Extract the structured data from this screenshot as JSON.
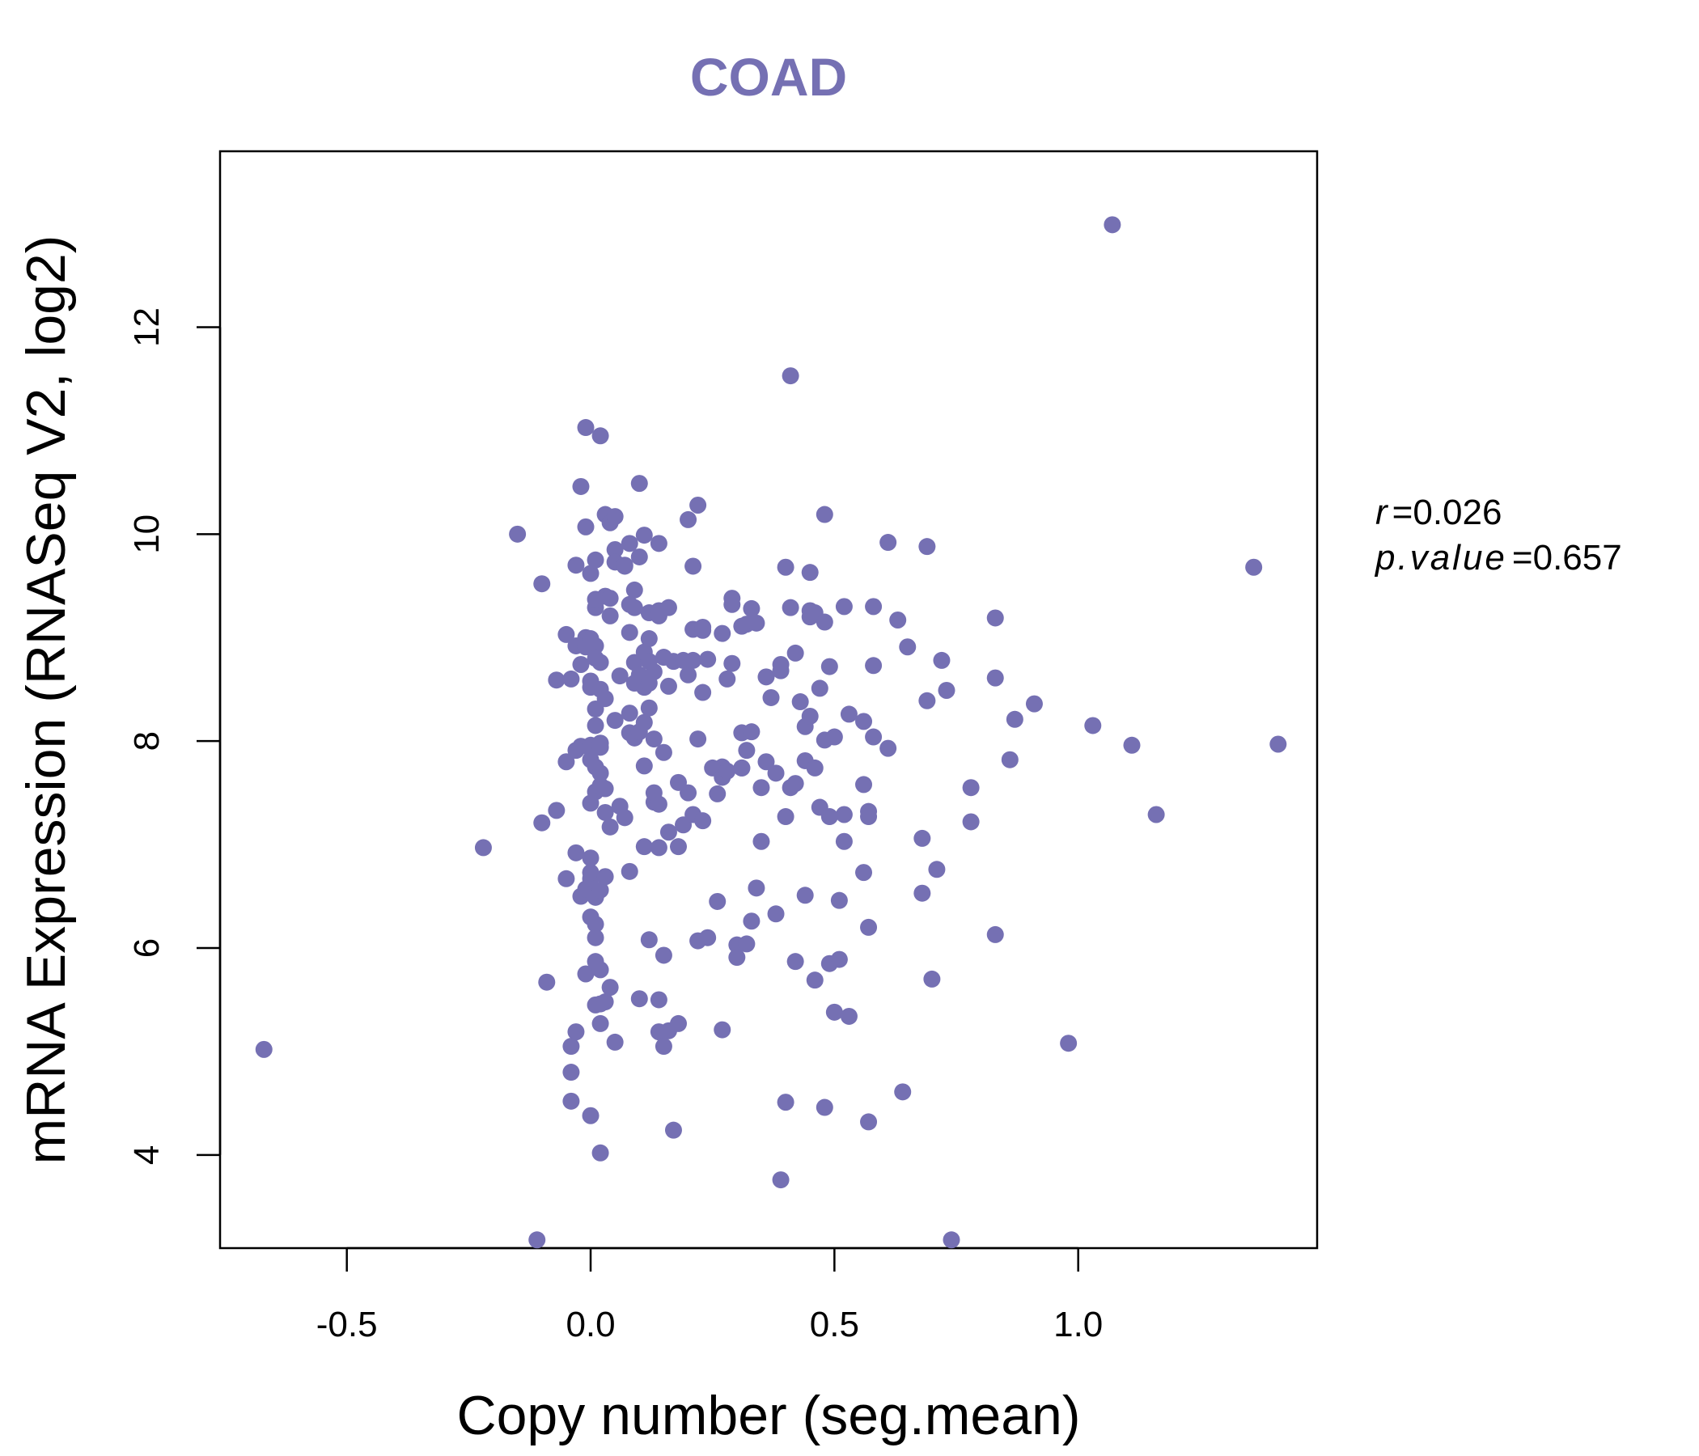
{
  "chart_data": {
    "type": "scatter",
    "title": "COAD",
    "xlabel": "Copy number (seg.mean)",
    "ylabel": "mRNA Expression (RNASeq V2, log2)",
    "xlim": [
      -0.76,
      1.49
    ],
    "ylim": [
      3.1,
      13.7
    ],
    "xticks": [
      -0.5,
      0.0,
      0.5,
      1.0
    ],
    "xtick_labels": [
      "-0.5",
      "0.0",
      "0.5",
      "1.0"
    ],
    "yticks": [
      4,
      6,
      8,
      10,
      12
    ],
    "ytick_labels": [
      "4",
      "6",
      "8",
      "10",
      "12"
    ],
    "grid": false,
    "point_color": "#7570b3",
    "annotations": {
      "r_label": "r",
      "r_value": "0.026",
      "p_label": "p.value",
      "p_value": "0.657"
    },
    "series": [
      {
        "x": [
          -0.67,
          -0.22,
          -0.15,
          -0.11,
          -0.1,
          -0.1,
          -0.09,
          -0.07,
          -0.07,
          -0.05,
          -0.05,
          -0.05,
          -0.04,
          -0.04,
          -0.04,
          -0.04,
          -0.03,
          -0.03,
          -0.03,
          -0.03,
          -0.03,
          -0.02,
          -0.02,
          -0.02,
          -0.02,
          -0.01,
          -0.01,
          -0.01,
          -0.01,
          -0.01,
          -0.01,
          0.0,
          0.0,
          0.0,
          0.0,
          0.0,
          0.0,
          0.0,
          0.0,
          0.0,
          0.0,
          0.0,
          0.0,
          0.01,
          0.01,
          0.01,
          0.01,
          0.01,
          0.01,
          0.01,
          0.01,
          0.01,
          0.01,
          0.01,
          0.01,
          0.01,
          0.01,
          0.02,
          0.02,
          0.02,
          0.02,
          0.02,
          0.02,
          0.02,
          0.02,
          0.02,
          0.02,
          0.02,
          0.02,
          0.03,
          0.03,
          0.03,
          0.03,
          0.03,
          0.03,
          0.03,
          0.04,
          0.04,
          0.04,
          0.04,
          0.04,
          0.05,
          0.05,
          0.05,
          0.05,
          0.05,
          0.06,
          0.06,
          0.07,
          0.07,
          0.07,
          0.08,
          0.08,
          0.08,
          0.08,
          0.08,
          0.08,
          0.09,
          0.09,
          0.09,
          0.09,
          0.09,
          0.1,
          0.1,
          0.1,
          0.1,
          0.1,
          0.11,
          0.11,
          0.11,
          0.11,
          0.11,
          0.11,
          0.12,
          0.12,
          0.12,
          0.12,
          0.12,
          0.12,
          0.13,
          0.13,
          0.13,
          0.13,
          0.14,
          0.14,
          0.14,
          0.14,
          0.14,
          0.14,
          0.14,
          0.15,
          0.15,
          0.15,
          0.15,
          0.16,
          0.16,
          0.16,
          0.16,
          0.17,
          0.17,
          0.18,
          0.18,
          0.18,
          0.19,
          0.19,
          0.2,
          0.2,
          0.2,
          0.21,
          0.21,
          0.21,
          0.21,
          0.22,
          0.22,
          0.22,
          0.23,
          0.23,
          0.23,
          0.23,
          0.24,
          0.24,
          0.25,
          0.26,
          0.26,
          0.27,
          0.27,
          0.27,
          0.27,
          0.28,
          0.28,
          0.29,
          0.29,
          0.29,
          0.3,
          0.3,
          0.31,
          0.31,
          0.31,
          0.31,
          0.32,
          0.32,
          0.32,
          0.33,
          0.33,
          0.33,
          0.34,
          0.34,
          0.35,
          0.35,
          0.36,
          0.36,
          0.37,
          0.38,
          0.38,
          0.39,
          0.39,
          0.39,
          0.4,
          0.4,
          0.4,
          0.41,
          0.41,
          0.41,
          0.42,
          0.42,
          0.42,
          0.43,
          0.44,
          0.44,
          0.44,
          0.45,
          0.45,
          0.45,
          0.45,
          0.46,
          0.46,
          0.46,
          0.47,
          0.47,
          0.48,
          0.48,
          0.48,
          0.48,
          0.49,
          0.49,
          0.49,
          0.5,
          0.5,
          0.51,
          0.51,
          0.52,
          0.52,
          0.52,
          0.53,
          0.53,
          0.56,
          0.56,
          0.56,
          0.57,
          0.57,
          0.57,
          0.57,
          0.58,
          0.58,
          0.58,
          0.61,
          0.61,
          0.63,
          0.64,
          0.65,
          0.68,
          0.68,
          0.69,
          0.69,
          0.7,
          0.71,
          0.72,
          0.73,
          0.74,
          0.78,
          0.78,
          0.83,
          0.83,
          0.83,
          0.86,
          0.87,
          0.91,
          0.98,
          1.03,
          1.07,
          1.11,
          1.16,
          1.36,
          1.41
        ],
        "y": [
          5.02,
          6.97,
          10.0,
          3.18,
          7.21,
          9.52,
          5.67,
          8.59,
          7.33,
          9.03,
          7.8,
          6.67,
          5.05,
          8.6,
          4.8,
          4.52,
          8.92,
          7.91,
          9.7,
          5.19,
          6.92,
          7.95,
          10.46,
          6.5,
          8.74,
          9.0,
          11.03,
          10.07,
          8.91,
          5.75,
          6.57,
          6.87,
          8.99,
          8.58,
          7.82,
          7.4,
          6.67,
          6.73,
          6.3,
          7.96,
          4.38,
          8.52,
          9.62,
          9.29,
          8.15,
          5.87,
          8.31,
          7.75,
          6.23,
          6.1,
          9.37,
          8.92,
          5.45,
          8.8,
          6.49,
          7.51,
          9.75,
          8.76,
          10.95,
          4.02,
          7.57,
          6.56,
          5.79,
          7.98,
          8.5,
          7.69,
          5.27,
          5.46,
          7.94,
          7.31,
          9.4,
          6.69,
          8.41,
          10.19,
          7.54,
          5.48,
          9.21,
          9.38,
          7.17,
          5.62,
          10.11,
          9.85,
          9.73,
          8.2,
          5.09,
          10.17,
          7.37,
          8.63,
          9.69,
          9.7,
          7.26,
          8.27,
          8.08,
          6.74,
          9.91,
          9.32,
          9.05,
          8.56,
          9.29,
          8.03,
          8.76,
          9.46,
          8.64,
          10.49,
          9.78,
          8.09,
          5.51,
          8.52,
          8.86,
          7.76,
          8.18,
          9.99,
          6.98,
          6.08,
          8.56,
          8.32,
          8.77,
          9.24,
          8.99,
          8.02,
          7.41,
          8.67,
          7.5,
          9.26,
          9.91,
          6.97,
          9.21,
          7.39,
          5.19,
          5.5,
          8.81,
          5.05,
          5.93,
          7.89,
          9.29,
          8.53,
          5.2,
          7.12,
          4.24,
          8.77,
          6.98,
          7.6,
          5.27,
          8.78,
          7.19,
          10.14,
          8.64,
          7.5,
          8.78,
          9.69,
          7.29,
          9.08,
          10.28,
          8.02,
          6.07,
          9.07,
          7.23,
          8.47,
          9.1,
          6.1,
          8.79,
          7.74,
          7.49,
          6.45,
          7.75,
          7.65,
          9.04,
          5.21,
          7.71,
          8.6,
          8.75,
          9.32,
          9.38,
          6.03,
          5.91,
          7.74,
          7.74,
          9.11,
          8.08,
          6.04,
          9.13,
          7.91,
          6.26,
          9.28,
          8.09,
          9.14,
          6.58,
          7.03,
          7.55,
          7.8,
          8.62,
          8.42,
          7.69,
          6.33,
          8.74,
          3.76,
          8.68,
          9.68,
          4.51,
          7.27,
          11.53,
          9.29,
          7.55,
          7.59,
          5.87,
          8.85,
          8.38,
          7.81,
          6.51,
          8.14,
          9.63,
          9.26,
          9.2,
          8.24,
          7.74,
          5.69,
          9.24,
          7.36,
          8.51,
          4.46,
          9.15,
          10.19,
          8.01,
          8.72,
          5.85,
          7.27,
          8.04,
          5.38,
          5.89,
          6.46,
          7.03,
          7.29,
          9.3,
          8.26,
          5.34,
          6.73,
          7.58,
          8.19,
          7.32,
          4.32,
          7.27,
          6.2,
          8.04,
          8.73,
          9.3,
          7.93,
          9.92,
          9.17,
          4.61,
          8.91,
          6.53,
          7.06,
          8.39,
          9.88,
          5.7,
          6.76,
          8.78,
          8.49,
          3.18,
          7.55,
          7.22,
          6.13,
          9.19,
          8.61,
          7.82,
          8.21,
          8.36,
          5.08,
          8.15,
          12.99,
          7.96,
          7.29,
          9.68,
          7.97
        ]
      }
    ]
  }
}
